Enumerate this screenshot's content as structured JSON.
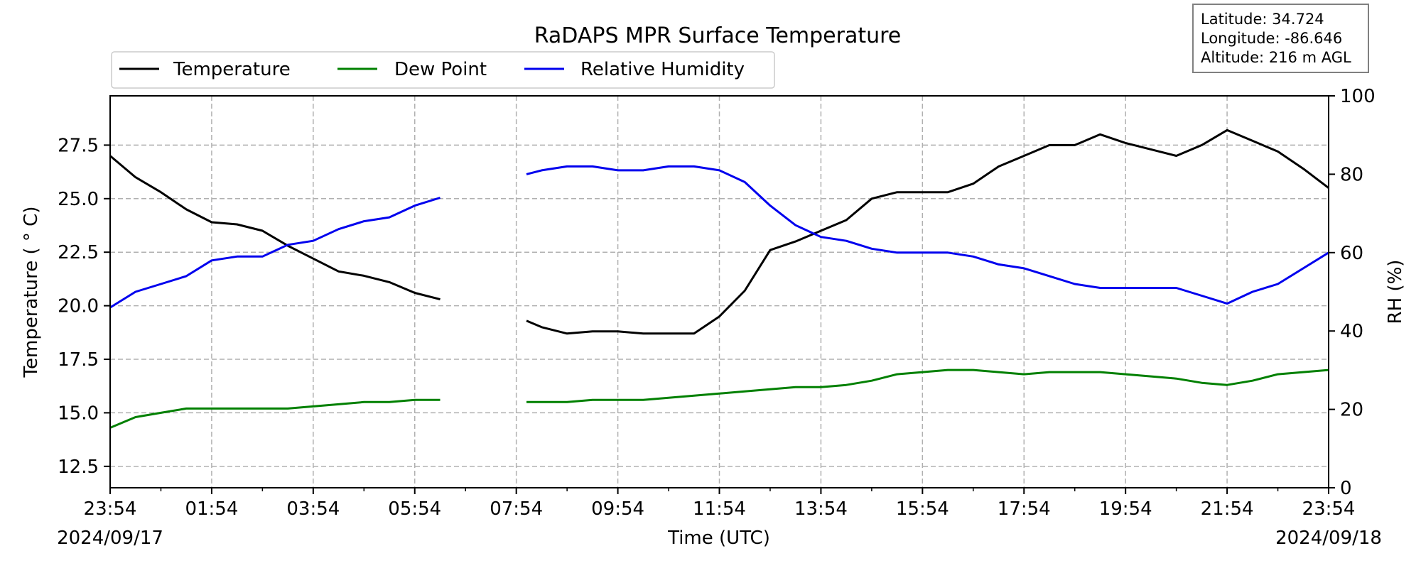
{
  "chart_data": {
    "type": "line",
    "title": "RaDAPS MPR Surface Temperature",
    "xlabel": "Time (UTC)",
    "ylabel_left": "Temperature ( ° C)",
    "ylabel_right": "RH (%)",
    "x_tick_labels": [
      "23:54",
      "01:54",
      "03:54",
      "05:54",
      "07:54",
      "09:54",
      "11:54",
      "13:54",
      "15:54",
      "17:54",
      "19:54",
      "21:54",
      "23:54"
    ],
    "x_range_hours": [
      0,
      24
    ],
    "date_start": "2024/09/17",
    "date_end": "2024/09/18",
    "ylim_left": [
      11.5,
      29.8
    ],
    "yticks_left": [
      "12.5",
      "15.0",
      "17.5",
      "20.0",
      "22.5",
      "25.0",
      "27.5"
    ],
    "ylim_right": [
      0,
      100
    ],
    "yticks_right": [
      "0",
      "20",
      "40",
      "60",
      "80",
      "100"
    ],
    "grid": true,
    "legend_placement": "top-left",
    "info_box": [
      "Latitude: 34.724",
      "Longitude: -86.646",
      "Altitude: 216 m AGL"
    ],
    "data_gaps_hours": [
      [
        6.5,
        8.2
      ]
    ],
    "series": [
      {
        "name": "Temperature",
        "color": "#000000",
        "axis": "left",
        "x": [
          0,
          0.5,
          1,
          1.5,
          2,
          2.5,
          3,
          3.5,
          4,
          4.5,
          5,
          5.5,
          6,
          6.5,
          8.2,
          8.5,
          9,
          9.5,
          10,
          10.5,
          11,
          11.5,
          12,
          12.5,
          13,
          13.5,
          14,
          14.5,
          15,
          15.5,
          16,
          16.5,
          17,
          17.5,
          18,
          18.5,
          19,
          19.5,
          20,
          20.5,
          21,
          21.5,
          22,
          22.5,
          23,
          23.5,
          24
        ],
        "values": [
          27.0,
          26.0,
          25.3,
          24.5,
          23.9,
          23.8,
          23.5,
          22.8,
          22.2,
          21.6,
          21.4,
          21.1,
          20.6,
          20.3,
          19.3,
          19.0,
          18.7,
          18.8,
          18.8,
          18.7,
          18.7,
          18.7,
          19.5,
          20.7,
          22.6,
          23.0,
          23.5,
          24.0,
          25.0,
          25.3,
          25.3,
          25.3,
          25.7,
          26.5,
          27.0,
          27.5,
          27.5,
          28.0,
          27.6,
          27.3,
          27.0,
          27.5,
          28.2,
          27.7,
          27.2,
          26.4,
          25.5
        ]
      },
      {
        "name": "Dew Point",
        "color": "#008000",
        "axis": "left",
        "x": [
          0,
          0.5,
          1,
          1.5,
          2,
          2.5,
          3,
          3.5,
          4,
          4.5,
          5,
          5.5,
          6,
          6.5,
          8.2,
          8.5,
          9,
          9.5,
          10,
          10.5,
          11,
          11.5,
          12,
          12.5,
          13,
          13.5,
          14,
          14.5,
          15,
          15.5,
          16,
          16.5,
          17,
          17.5,
          18,
          18.5,
          19,
          19.5,
          20,
          20.5,
          21,
          21.5,
          22,
          22.5,
          23,
          23.5,
          24
        ],
        "values": [
          14.3,
          14.8,
          15.0,
          15.2,
          15.2,
          15.2,
          15.2,
          15.2,
          15.3,
          15.4,
          15.5,
          15.5,
          15.6,
          15.6,
          15.5,
          15.5,
          15.5,
          15.6,
          15.6,
          15.6,
          15.7,
          15.8,
          15.9,
          16.0,
          16.1,
          16.2,
          16.2,
          16.3,
          16.5,
          16.8,
          16.9,
          17.0,
          17.0,
          16.9,
          16.8,
          16.9,
          16.9,
          16.9,
          16.8,
          16.7,
          16.6,
          16.4,
          16.3,
          16.5,
          16.8,
          16.9,
          17.0
        ]
      },
      {
        "name": "Relative Humidity",
        "color": "#0000ee",
        "axis": "right",
        "x": [
          0,
          0.5,
          1,
          1.5,
          2,
          2.5,
          3,
          3.5,
          4,
          4.5,
          5,
          5.5,
          6,
          6.5,
          8.2,
          8.5,
          9,
          9.5,
          10,
          10.5,
          11,
          11.5,
          12,
          12.5,
          13,
          13.5,
          14,
          14.5,
          15,
          15.5,
          16,
          16.5,
          17,
          17.5,
          18,
          18.5,
          19,
          19.5,
          20,
          20.5,
          21,
          21.5,
          22,
          22.5,
          23,
          23.5,
          24
        ],
        "values": [
          46,
          50,
          52,
          54,
          58,
          59,
          59,
          62,
          63,
          66,
          68,
          69,
          72,
          74,
          80,
          81,
          82,
          82,
          81,
          81,
          82,
          82,
          81,
          78,
          72,
          67,
          64,
          63,
          61,
          60,
          60,
          60,
          59,
          57,
          56,
          54,
          52,
          51,
          51,
          51,
          51,
          49,
          47,
          50,
          52,
          56,
          60
        ]
      }
    ]
  }
}
